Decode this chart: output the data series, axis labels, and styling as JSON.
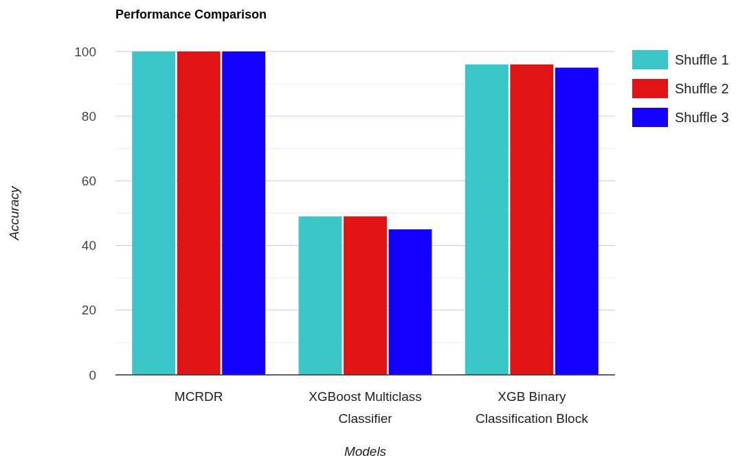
{
  "chart_data": {
    "type": "bar",
    "title": "Performance Comparison",
    "xlabel": "Models",
    "ylabel": "Accuracy",
    "categories": [
      "MCRDR",
      "XGBoost Multiclass Classifier",
      "XGB Binary Classification Block"
    ],
    "series": [
      {
        "name": "Shuffle 1",
        "color": "#3ac6c9",
        "values": [
          100,
          49,
          96
        ]
      },
      {
        "name": "Shuffle 2",
        "color": "#e01414",
        "values": [
          100,
          49,
          96
        ]
      },
      {
        "name": "Shuffle 3",
        "color": "#1400ff",
        "values": [
          100,
          45,
          95
        ]
      }
    ],
    "ylim": [
      0,
      100
    ],
    "yticks": [
      0,
      {
        "value": 10,
        "label": null
      },
      20,
      {
        "value": 30,
        "label": null
      },
      40,
      {
        "value": 50,
        "label": null
      },
      60,
      {
        "value": 70,
        "label": null
      },
      80,
      {
        "value": 90,
        "label": null
      },
      100
    ],
    "grid": "y",
    "legend": "top right"
  }
}
